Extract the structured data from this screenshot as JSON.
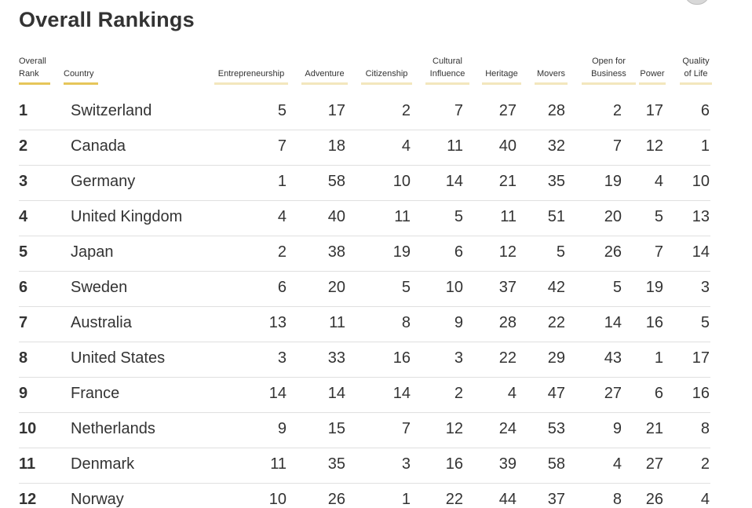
{
  "page_title": "Overall Rankings",
  "colors": {
    "accent_underline": "#e6c65a",
    "muted_underline": "#f3e7bd",
    "row_divider": "#e0e0e0",
    "text": "#333333"
  },
  "table": {
    "headers": {
      "rank": [
        "Overall",
        "Rank"
      ],
      "country": [
        "Country"
      ],
      "metrics": [
        [
          "Entrepreneurship"
        ],
        [
          "Adventure"
        ],
        [
          "Citizenship"
        ],
        [
          "Cultural",
          "Influence"
        ],
        [
          "Heritage"
        ],
        [
          "Movers"
        ],
        [
          "Open for",
          "Business"
        ],
        [
          "Power"
        ],
        [
          "Quality",
          "of Life"
        ]
      ]
    },
    "rows": [
      {
        "rank": "1",
        "country": "Switzerland",
        "scores": [
          "5",
          "17",
          "2",
          "7",
          "27",
          "28",
          "2",
          "17",
          "6"
        ]
      },
      {
        "rank": "2",
        "country": "Canada",
        "scores": [
          "7",
          "18",
          "4",
          "11",
          "40",
          "32",
          "7",
          "12",
          "1"
        ]
      },
      {
        "rank": "3",
        "country": "Germany",
        "scores": [
          "1",
          "58",
          "10",
          "14",
          "21",
          "35",
          "19",
          "4",
          "10"
        ]
      },
      {
        "rank": "4",
        "country": "United Kingdom",
        "scores": [
          "4",
          "40",
          "11",
          "5",
          "11",
          "51",
          "20",
          "5",
          "13"
        ]
      },
      {
        "rank": "5",
        "country": "Japan",
        "scores": [
          "2",
          "38",
          "19",
          "6",
          "12",
          "5",
          "26",
          "7",
          "14"
        ]
      },
      {
        "rank": "6",
        "country": "Sweden",
        "scores": [
          "6",
          "20",
          "5",
          "10",
          "37",
          "42",
          "5",
          "19",
          "3"
        ]
      },
      {
        "rank": "7",
        "country": "Australia",
        "scores": [
          "13",
          "11",
          "8",
          "9",
          "28",
          "22",
          "14",
          "16",
          "5"
        ]
      },
      {
        "rank": "8",
        "country": "United States",
        "scores": [
          "3",
          "33",
          "16",
          "3",
          "22",
          "29",
          "43",
          "1",
          "17"
        ]
      },
      {
        "rank": "9",
        "country": "France",
        "scores": [
          "14",
          "14",
          "14",
          "2",
          "4",
          "47",
          "27",
          "6",
          "16"
        ]
      },
      {
        "rank": "10",
        "country": "Netherlands",
        "scores": [
          "9",
          "15",
          "7",
          "12",
          "24",
          "53",
          "9",
          "21",
          "8"
        ]
      },
      {
        "rank": "11",
        "country": "Denmark",
        "scores": [
          "11",
          "35",
          "3",
          "16",
          "39",
          "58",
          "4",
          "27",
          "2"
        ]
      },
      {
        "rank": "12",
        "country": "Norway",
        "scores": [
          "10",
          "26",
          "1",
          "22",
          "44",
          "37",
          "8",
          "26",
          "4"
        ]
      }
    ]
  }
}
